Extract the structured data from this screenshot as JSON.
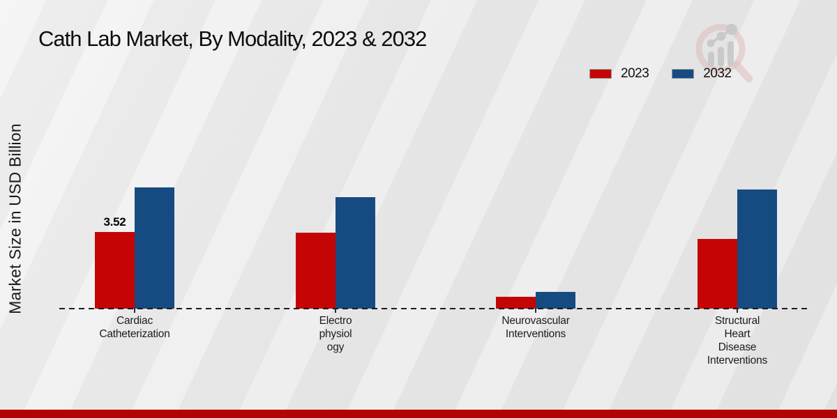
{
  "page": {
    "title": "Cath Lab Market, By Modality, 2023 & 2032"
  },
  "y_axis_label": "Market Size in USD Billion",
  "legend": {
    "items": [
      {
        "label": "2023",
        "color": "#c50505"
      },
      {
        "label": "2032",
        "color": "#164b82"
      }
    ]
  },
  "chart_data": {
    "type": "bar",
    "title": "Cath Lab Market, By Modality, 2023 & 2032",
    "ylabel": "Market Size in USD Billion",
    "unit": "USD Billion",
    "categories": [
      "Cardiac Catheterization",
      "Electrophysiology",
      "Neurovascular Interventions",
      "Structural Heart Disease Interventions"
    ],
    "category_label_lines": [
      [
        "Cardiac",
        "Catheterization"
      ],
      [
        "Electro",
        "physiol",
        "ogy"
      ],
      [
        "Neurovascular",
        "Interventions"
      ],
      [
        "Structural",
        "Heart",
        "Disease",
        "Interventions"
      ]
    ],
    "series": [
      {
        "name": "2023",
        "color": "#c50505",
        "values": [
          3.52,
          3.5,
          0.55,
          3.2
        ],
        "value_labels": [
          "3.52",
          "",
          "",
          ""
        ]
      },
      {
        "name": "2032",
        "color": "#164b82",
        "values": [
          5.57,
          5.12,
          0.77,
          5.47
        ],
        "value_labels": [
          "",
          "",
          "",
          ""
        ]
      }
    ],
    "ylim": [
      0,
      6
    ],
    "grid": false,
    "baseline_style": "dashed",
    "legend_position": "top-right"
  },
  "footer": {
    "accent_color": "#b30404"
  },
  "watermark": {
    "name": "magnifier-bar-chart-logo"
  }
}
